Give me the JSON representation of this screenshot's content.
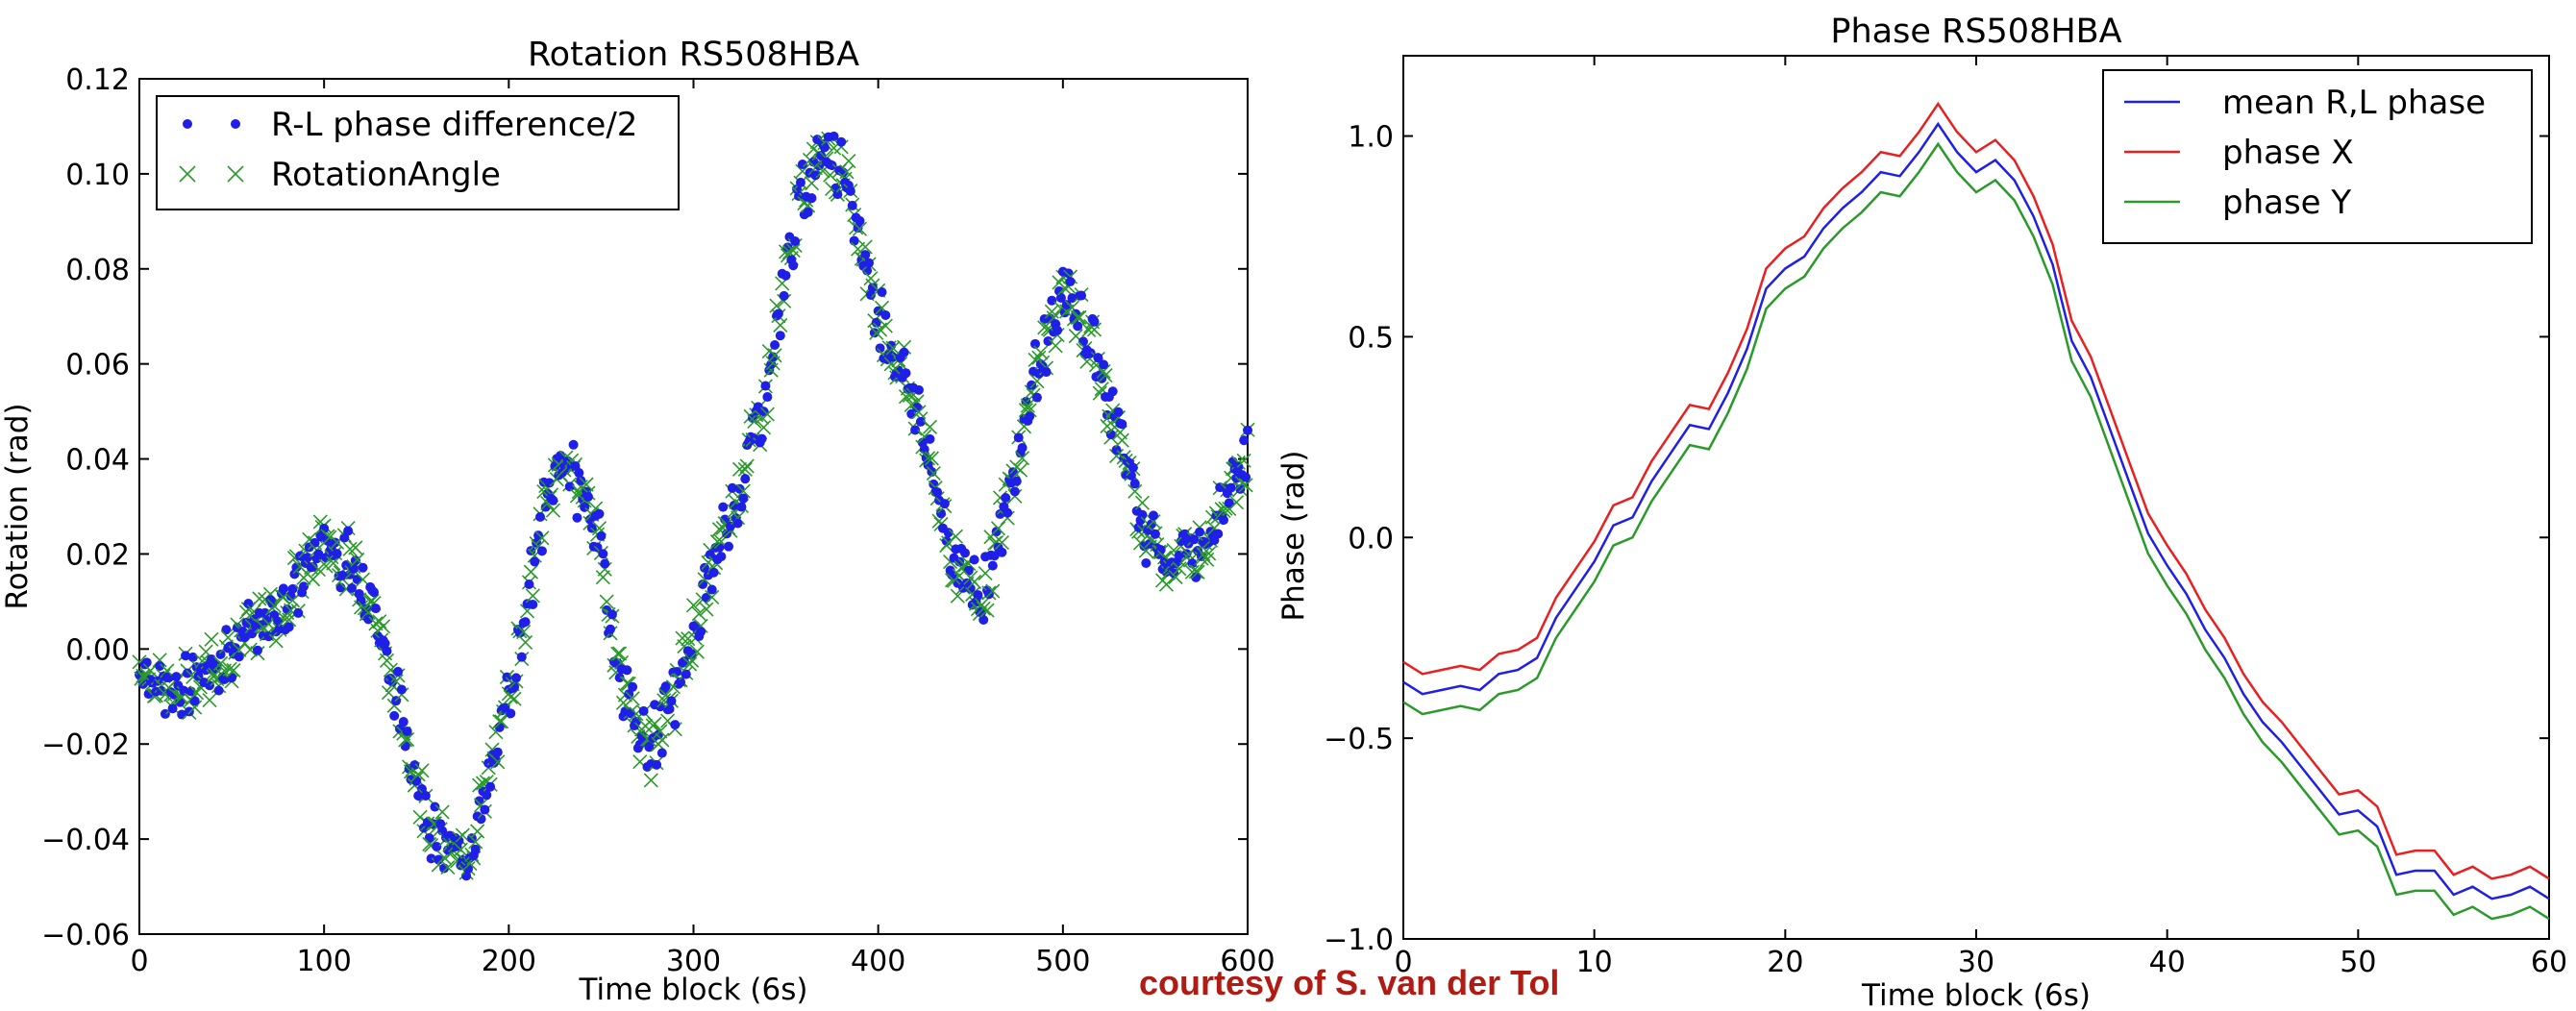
{
  "chart_data": [
    {
      "type": "scatter",
      "title": "Rotation RS508HBA",
      "xlabel": "Time block (6s)",
      "ylabel": "Rotation (rad)",
      "xlim": [
        0,
        600
      ],
      "ylim": [
        -0.06,
        0.12
      ],
      "xticks": [
        "0",
        "100",
        "200",
        "300",
        "400",
        "500",
        "600"
      ],
      "yticks": [
        "−0.06",
        "−0.04",
        "−0.02",
        "0.00",
        "0.02",
        "0.04",
        "0.06",
        "0.08",
        "0.10",
        "0.12"
      ],
      "legend_position": "top-left",
      "grid": false,
      "series": [
        {
          "name": "R-L phase difference/2",
          "marker": "dot",
          "color": "#1f1fe8"
        },
        {
          "name": "RotationAngle",
          "marker": "x",
          "color": "#2a9a2a"
        }
      ],
      "trend_x": [
        0,
        20,
        40,
        60,
        80,
        100,
        110,
        125,
        140,
        160,
        175,
        190,
        205,
        220,
        230,
        245,
        260,
        275,
        290,
        305,
        320,
        340,
        355,
        370,
        385,
        400,
        420,
        440,
        455,
        470,
        485,
        500,
        515,
        530,
        545,
        560,
        575,
        590,
        600
      ],
      "trend_y": [
        -0.003,
        -0.01,
        -0.003,
        0.003,
        0.01,
        0.023,
        0.02,
        0.012,
        -0.012,
        -0.04,
        -0.045,
        -0.028,
        0.0,
        0.03,
        0.04,
        0.03,
        -0.005,
        -0.022,
        -0.01,
        0.01,
        0.028,
        0.055,
        0.09,
        0.108,
        0.095,
        0.07,
        0.052,
        0.02,
        0.01,
        0.03,
        0.058,
        0.075,
        0.065,
        0.045,
        0.025,
        0.018,
        0.022,
        0.035,
        0.04
      ]
    },
    {
      "type": "line",
      "title": "Phase RS508HBA",
      "xlabel": "Time block (6s)",
      "ylabel": "Phase (rad)",
      "xlim": [
        0,
        60
      ],
      "ylim": [
        -1.0,
        1.2
      ],
      "xticks": [
        "0",
        "10",
        "20",
        "30",
        "40",
        "50",
        "60"
      ],
      "yticks": [
        "−1.0",
        "−0.5",
        "0.0",
        "0.5",
        "1.0"
      ],
      "legend_position": "top-right",
      "grid": false,
      "x": [
        0,
        1,
        2,
        3,
        4,
        5,
        6,
        7,
        8,
        9,
        10,
        11,
        12,
        13,
        14,
        15,
        16,
        17,
        18,
        19,
        20,
        21,
        22,
        23,
        24,
        25,
        26,
        27,
        28,
        29,
        30,
        31,
        32,
        33,
        34,
        35,
        36,
        37,
        38,
        39,
        40,
        41,
        42,
        43,
        44,
        45,
        46,
        47,
        48,
        49,
        50,
        51,
        52,
        53,
        54,
        55,
        56,
        57,
        58,
        59,
        60
      ],
      "series": [
        {
          "name": "mean R,L phase",
          "color": "#1f1fe8",
          "values": [
            -0.36,
            -0.39,
            -0.38,
            -0.37,
            -0.38,
            -0.34,
            -0.33,
            -0.3,
            -0.2,
            -0.13,
            -0.06,
            0.03,
            0.05,
            0.14,
            0.21,
            0.28,
            0.27,
            0.36,
            0.47,
            0.62,
            0.67,
            0.7,
            0.77,
            0.82,
            0.86,
            0.91,
            0.9,
            0.96,
            1.03,
            0.96,
            0.91,
            0.94,
            0.89,
            0.8,
            0.68,
            0.49,
            0.4,
            0.27,
            0.14,
            0.01,
            -0.07,
            -0.14,
            -0.23,
            -0.3,
            -0.39,
            -0.46,
            -0.51,
            -0.57,
            -0.63,
            -0.69,
            -0.68,
            -0.72,
            -0.84,
            -0.83,
            -0.83,
            -0.89,
            -0.87,
            -0.9,
            -0.89,
            -0.87,
            -0.9
          ]
        },
        {
          "name": "phase X",
          "color": "#e8201f",
          "values": [
            -0.31,
            -0.34,
            -0.33,
            -0.32,
            -0.33,
            -0.29,
            -0.28,
            -0.25,
            -0.15,
            -0.08,
            -0.01,
            0.08,
            0.1,
            0.19,
            0.26,
            0.33,
            0.32,
            0.41,
            0.52,
            0.67,
            0.72,
            0.75,
            0.82,
            0.87,
            0.91,
            0.96,
            0.95,
            1.01,
            1.08,
            1.01,
            0.96,
            0.99,
            0.94,
            0.85,
            0.73,
            0.54,
            0.45,
            0.32,
            0.19,
            0.06,
            -0.02,
            -0.09,
            -0.18,
            -0.25,
            -0.34,
            -0.41,
            -0.46,
            -0.52,
            -0.58,
            -0.64,
            -0.63,
            -0.67,
            -0.79,
            -0.78,
            -0.78,
            -0.84,
            -0.82,
            -0.85,
            -0.84,
            -0.82,
            -0.85
          ]
        },
        {
          "name": "phase Y",
          "color": "#2a9a2a",
          "values": [
            -0.41,
            -0.44,
            -0.43,
            -0.42,
            -0.43,
            -0.39,
            -0.38,
            -0.35,
            -0.25,
            -0.18,
            -0.11,
            -0.02,
            0.0,
            0.09,
            0.16,
            0.23,
            0.22,
            0.31,
            0.42,
            0.57,
            0.62,
            0.65,
            0.72,
            0.77,
            0.81,
            0.86,
            0.85,
            0.91,
            0.98,
            0.91,
            0.86,
            0.89,
            0.84,
            0.75,
            0.63,
            0.44,
            0.35,
            0.22,
            0.09,
            -0.04,
            -0.12,
            -0.19,
            -0.28,
            -0.35,
            -0.44,
            -0.51,
            -0.56,
            -0.62,
            -0.68,
            -0.74,
            -0.73,
            -0.77,
            -0.89,
            -0.88,
            -0.88,
            -0.94,
            -0.92,
            -0.95,
            -0.94,
            -0.92,
            -0.95
          ]
        }
      ]
    }
  ],
  "credit": "courtesy of S. van der Tol",
  "colors": {
    "blue": "#1f1fe8",
    "red": "#e8201f",
    "green": "#2a9a2a",
    "credit": "#b01c14"
  }
}
